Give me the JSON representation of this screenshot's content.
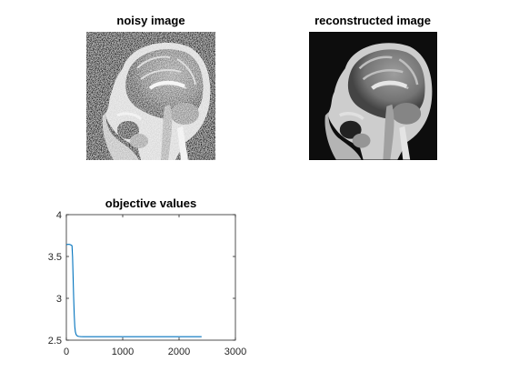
{
  "figure": {
    "panels": [
      {
        "title": "noisy image"
      },
      {
        "title": "reconstructed image"
      }
    ]
  },
  "chart_data": {
    "type": "line",
    "title": "objective values",
    "xlabel": "",
    "ylabel": "",
    "xlim": [
      0,
      3000
    ],
    "ylim": [
      2.5,
      4
    ],
    "xticks": [
      "0",
      "1000",
      "2000",
      "3000"
    ],
    "yticks": [
      "2.5",
      "3",
      "3.5",
      "4"
    ],
    "grid": false,
    "series": [
      {
        "color": "#0072BD",
        "x": [
          0,
          25,
          50,
          75,
          100,
          110,
          120,
          130,
          140,
          150,
          160,
          170,
          180,
          190,
          200,
          220,
          250,
          300,
          400,
          600,
          1000,
          1500,
          2000,
          2400
        ],
        "y": [
          3.64,
          3.645,
          3.645,
          3.64,
          3.63,
          3.5,
          3.25,
          3.0,
          2.8,
          2.66,
          2.6,
          2.575,
          2.56,
          2.553,
          2.548,
          2.545,
          2.543,
          2.542,
          2.541,
          2.541,
          2.541,
          2.541,
          2.541,
          2.541
        ]
      }
    ]
  }
}
